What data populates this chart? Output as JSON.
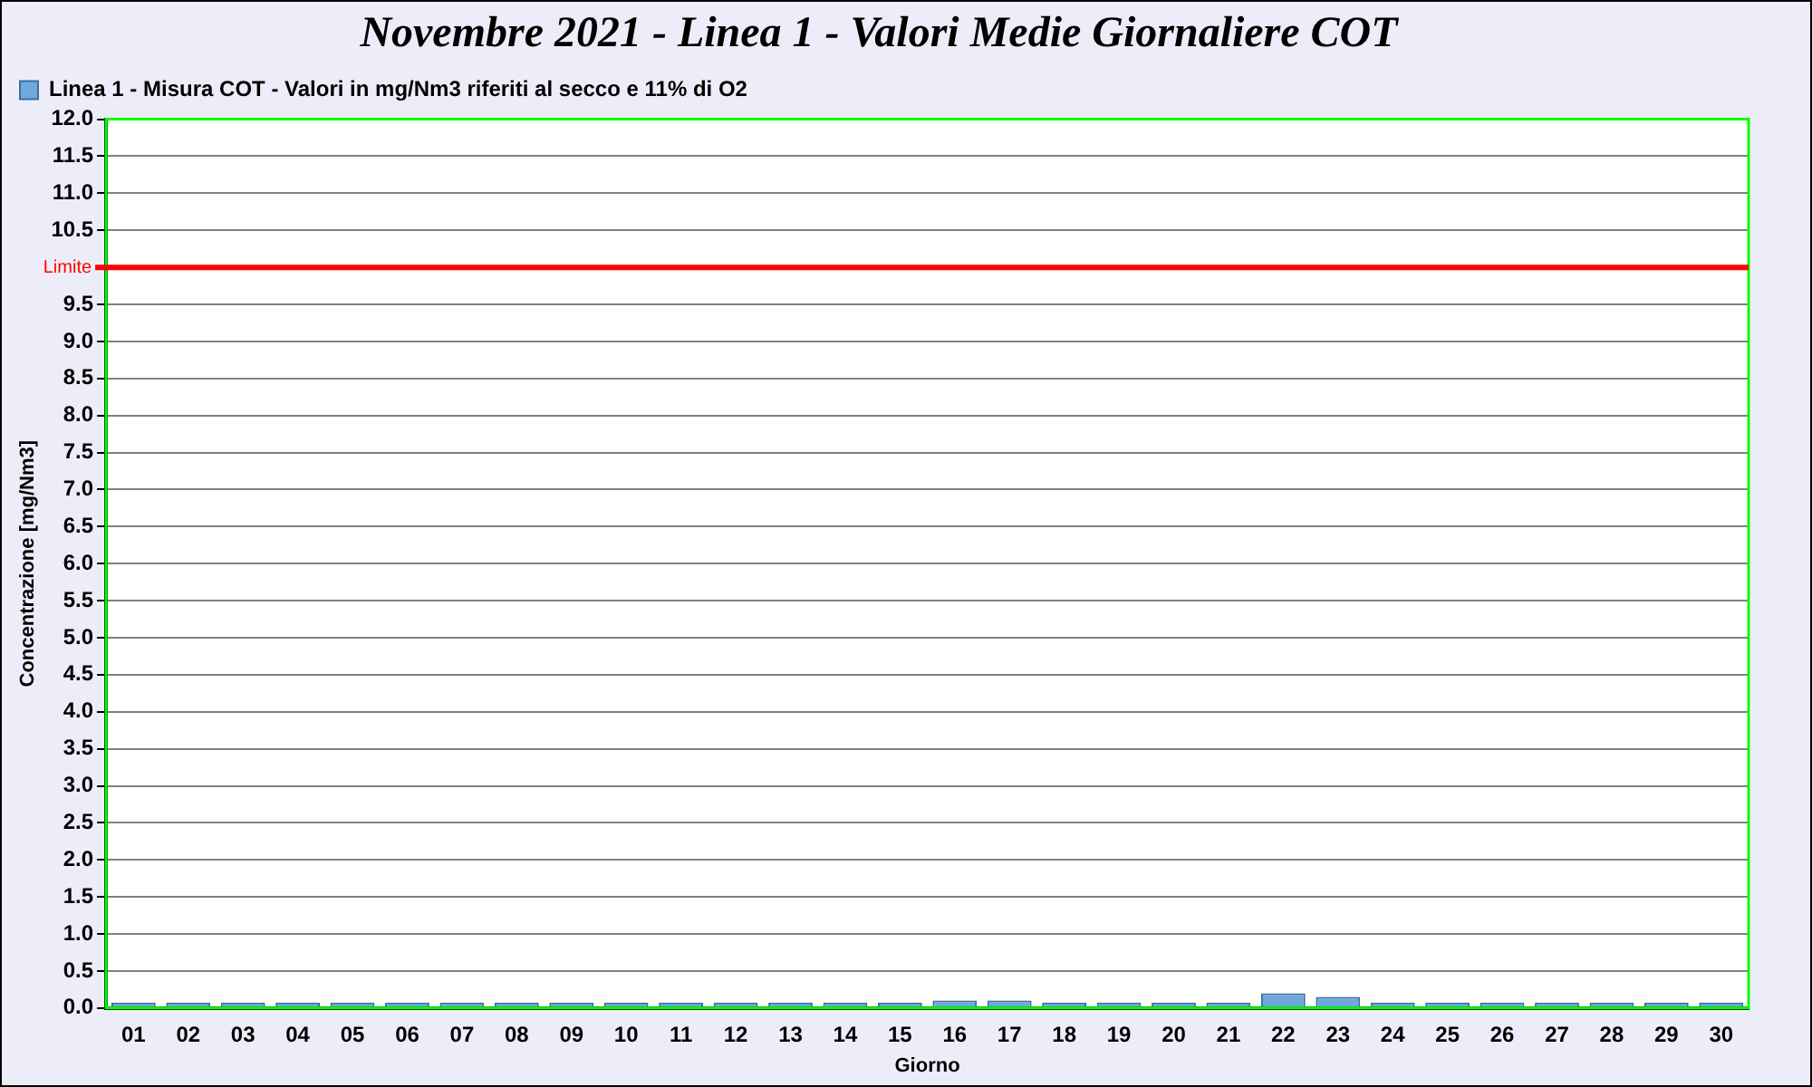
{
  "chart_data": {
    "type": "bar",
    "title": "Novembre 2021 - Linea 1 - Valori Medie Giornaliere COT",
    "xlabel": "Giorno",
    "ylabel": "Concentrazione [mg/Nm3]",
    "categories": [
      "01",
      "02",
      "03",
      "04",
      "05",
      "06",
      "07",
      "08",
      "09",
      "10",
      "11",
      "12",
      "13",
      "14",
      "15",
      "16",
      "17",
      "18",
      "19",
      "20",
      "21",
      "22",
      "23",
      "24",
      "25",
      "26",
      "27",
      "28",
      "29",
      "30"
    ],
    "series": [
      {
        "name": "Linea 1 - Misura COT - Valori in mg/Nm3 riferiti al secco e 11% di O2",
        "color": "#6fa8dc",
        "values": [
          0,
          0,
          0,
          0,
          0,
          0.05,
          0,
          0,
          0,
          0,
          0.05,
          0,
          0,
          0.05,
          0,
          0.1,
          0.1,
          0.05,
          0,
          0,
          0.05,
          0.2,
          0.15,
          0,
          0,
          0,
          0,
          0,
          0,
          0
        ]
      }
    ],
    "ylim": [
      0,
      12
    ],
    "yticks": [
      {
        "value": 0,
        "label": "0.0"
      },
      0.5,
      {
        "value": 1,
        "label": "1.0"
      },
      1.5,
      {
        "value": 2,
        "label": "2.0"
      },
      2.5,
      {
        "value": 3,
        "label": "3.0"
      },
      3.5,
      {
        "value": 4,
        "label": "4.0"
      },
      4.5,
      {
        "value": 5,
        "label": "5.0"
      },
      5.5,
      {
        "value": 6,
        "label": "6.0"
      },
      6.5,
      {
        "value": 7,
        "label": "7.0"
      },
      7.5,
      {
        "value": 8,
        "label": "8.0"
      },
      8.5,
      {
        "value": 9,
        "label": "9.0"
      },
      9.5,
      {
        "value": 10,
        "label": null
      },
      10.5,
      {
        "value": 11,
        "label": "11.0"
      },
      11.5,
      {
        "value": 12,
        "label": "12.0"
      }
    ],
    "ref_lines": [
      {
        "axis": "y",
        "value": 10,
        "label": "Limite",
        "color": "#ff0000"
      }
    ],
    "grid": "y",
    "legend": "top left"
  }
}
